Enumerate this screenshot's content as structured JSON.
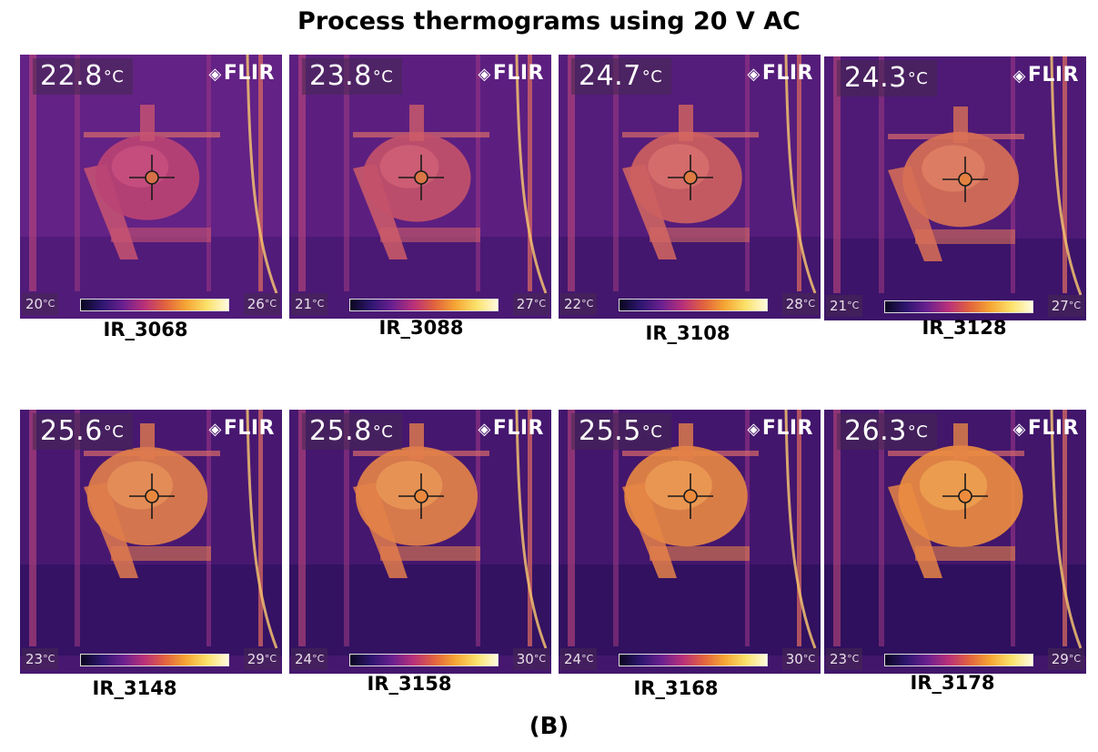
{
  "figure": {
    "title": "Process thermograms using 20 V AC",
    "sublabel": "(B)",
    "brand": "FLIR",
    "unit": "°C",
    "thermograms": [
      {
        "id": "IR_3068",
        "spot": "22.8",
        "min": "20",
        "max": "26",
        "heat": 0.15
      },
      {
        "id": "IR_3088",
        "spot": "23.8",
        "min": "21",
        "max": "27",
        "heat": 0.3
      },
      {
        "id": "IR_3108",
        "spot": "24.7",
        "min": "22",
        "max": "28",
        "heat": 0.45
      },
      {
        "id": "IR_3128",
        "spot": "24.3",
        "min": "21",
        "max": "27",
        "heat": 0.6
      },
      {
        "id": "IR_3148",
        "spot": "25.6",
        "min": "23",
        "max": "29",
        "heat": 0.75
      },
      {
        "id": "IR_3158",
        "spot": "25.8",
        "min": "24",
        "max": "30",
        "heat": 0.8
      },
      {
        "id": "IR_3168",
        "spot": "25.5",
        "min": "24",
        "max": "30",
        "heat": 0.85
      },
      {
        "id": "IR_3178",
        "spot": "26.3",
        "min": "23",
        "max": "29",
        "heat": 0.9
      }
    ]
  }
}
